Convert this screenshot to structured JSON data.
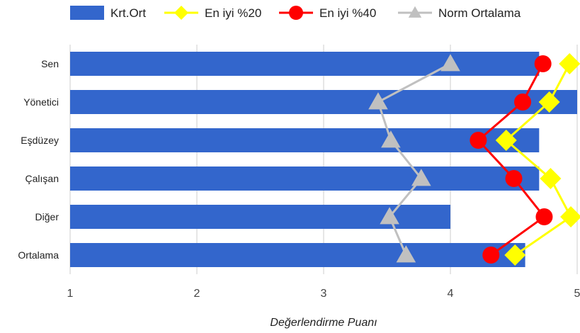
{
  "chart_data": {
    "type": "bar",
    "orientation": "horizontal",
    "categories": [
      "Sen",
      "Yönetici",
      "Eşdüzey",
      "Çalışan",
      "Diğer",
      "Ortalama"
    ],
    "series": [
      {
        "name": "Krt.Ort",
        "kind": "bar",
        "color": "#3366cc",
        "values": [
          4.7,
          5.0,
          4.7,
          4.7,
          4.0,
          4.59
        ]
      },
      {
        "name": "En iyi %20",
        "kind": "line",
        "marker": "diamond",
        "color": "#ffff00",
        "values": [
          4.94,
          4.78,
          4.44,
          4.79,
          4.95,
          4.51
        ]
      },
      {
        "name": "En iyi %40",
        "kind": "line",
        "marker": "circle",
        "color": "#ff0000",
        "values": [
          4.73,
          4.57,
          4.22,
          4.5,
          4.74,
          4.32
        ]
      },
      {
        "name": "Norm Ortalama",
        "kind": "line",
        "marker": "triangle",
        "color": "#c0c0c0",
        "values": [
          4.0,
          3.43,
          3.53,
          3.77,
          3.52,
          3.65
        ]
      }
    ],
    "xlim": [
      1,
      5
    ],
    "xticks": [
      "1",
      "2",
      "3",
      "4",
      "5"
    ],
    "xlabel": "Değerlendirme Puanı",
    "grid": true,
    "legend": "top"
  }
}
